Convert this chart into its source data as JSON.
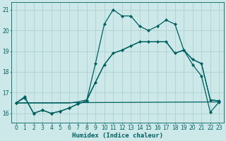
{
  "xlabel": "Humidex (Indice chaleur)",
  "xlim": [
    -0.5,
    23.5
  ],
  "ylim": [
    15.55,
    21.35
  ],
  "yticks": [
    16,
    17,
    18,
    19,
    20,
    21
  ],
  "xticks": [
    0,
    1,
    2,
    3,
    4,
    5,
    6,
    7,
    8,
    9,
    10,
    11,
    12,
    13,
    14,
    15,
    16,
    17,
    18,
    19,
    20,
    21,
    22,
    23
  ],
  "bg_color": "#cce8e8",
  "grid_color": "#aacccc",
  "line_color": "#006060",
  "series1_x": [
    0,
    1,
    2,
    3,
    4,
    5,
    6,
    7,
    8,
    9,
    10,
    11,
    12,
    13,
    14,
    15,
    16,
    17,
    18,
    19,
    20,
    21,
    22,
    23
  ],
  "series1_y": [
    16.5,
    16.8,
    16.0,
    16.15,
    16.0,
    16.1,
    16.25,
    16.45,
    16.6,
    18.4,
    20.3,
    21.0,
    20.7,
    20.7,
    20.2,
    20.0,
    20.2,
    20.5,
    20.3,
    19.05,
    18.35,
    17.8,
    16.05,
    16.55
  ],
  "series2_x": [
    0,
    23
  ],
  "series2_y": [
    16.5,
    16.55
  ],
  "series3_x": [
    0,
    1,
    2,
    3,
    4,
    5,
    6,
    7,
    8,
    9,
    10,
    11,
    12,
    13,
    14,
    15,
    16,
    17,
    18,
    19,
    20,
    21,
    22,
    23
  ],
  "series3_y": [
    16.5,
    16.5,
    16.5,
    16.5,
    16.5,
    16.5,
    16.5,
    16.55,
    16.65,
    17.5,
    18.35,
    18.9,
    19.05,
    19.25,
    19.45,
    19.45,
    19.45,
    19.45,
    18.9,
    19.05,
    18.6,
    18.4,
    16.65,
    16.6
  ],
  "series4_x": [
    0,
    1,
    2,
    3,
    4,
    5,
    6,
    7,
    8,
    9,
    10,
    11,
    12,
    13,
    14,
    15,
    16,
    17,
    18,
    19,
    20,
    21,
    22,
    23
  ],
  "series4_y": [
    16.5,
    16.75,
    16.0,
    16.15,
    16.0,
    16.1,
    16.25,
    16.45,
    16.6,
    17.5,
    18.35,
    18.9,
    19.05,
    19.25,
    19.45,
    19.45,
    19.45,
    19.45,
    18.9,
    19.05,
    18.6,
    18.4,
    16.65,
    16.6
  ]
}
